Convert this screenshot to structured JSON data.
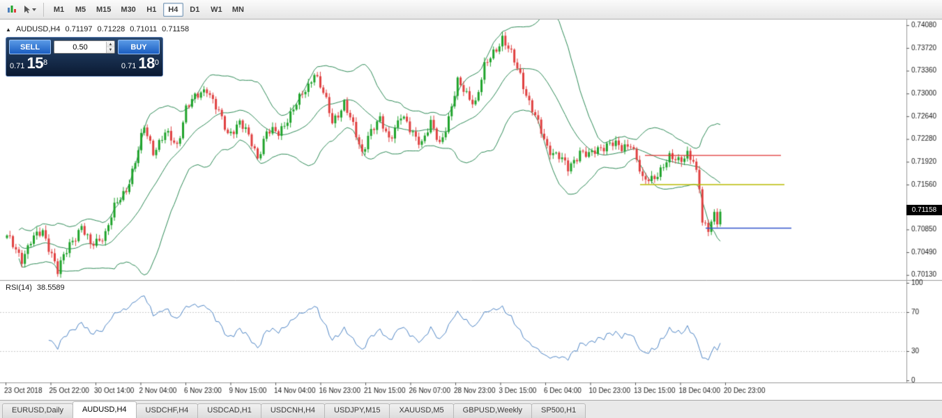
{
  "toolbar": {
    "icons": [
      {
        "name": "chart-bars-icon"
      },
      {
        "name": "cursor-dropdown-icon"
      }
    ],
    "timeframes": [
      {
        "label": "M1",
        "active": false
      },
      {
        "label": "M5",
        "active": false
      },
      {
        "label": "M15",
        "active": false
      },
      {
        "label": "M30",
        "active": false
      },
      {
        "label": "H1",
        "active": false
      },
      {
        "label": "H4",
        "active": true
      },
      {
        "label": "D1",
        "active": false
      },
      {
        "label": "W1",
        "active": false
      },
      {
        "label": "MN",
        "active": false
      }
    ]
  },
  "symbol_header": {
    "collapse_icon": "▲",
    "symbol": "AUDUSD,H4",
    "open": "0.71197",
    "high": "0.71228",
    "low": "0.71011",
    "close": "0.71158"
  },
  "one_click": {
    "sell_label": "SELL",
    "buy_label": "BUY",
    "lot": "0.50",
    "sell_price_small": "0.71",
    "sell_price_big": "15",
    "sell_price_sup": "8",
    "buy_price_small": "0.71",
    "buy_price_big": "18",
    "buy_price_sup": "0"
  },
  "rsi_panel": {
    "name": "RSI(14)",
    "value": "38.5589",
    "levels": [
      "100",
      "70",
      "30",
      "0"
    ],
    "overbought": 70,
    "oversold": 30,
    "line_color": "#4f86c6",
    "level_line_color": "#c9c9c9"
  },
  "tabs": [
    {
      "label": "EURUSD,Daily",
      "active": false
    },
    {
      "label": "AUDUSD,H4",
      "active": true
    },
    {
      "label": "USDCHF,H4",
      "active": false
    },
    {
      "label": "USDCAD,H1",
      "active": false
    },
    {
      "label": "USDCNH,H4",
      "active": false
    },
    {
      "label": "USDJPY,M15",
      "active": false
    },
    {
      "label": "XAUUSD,M5",
      "active": false
    },
    {
      "label": "GBPUSD,Weekly",
      "active": false
    },
    {
      "label": "SP500,H1",
      "active": false
    }
  ],
  "chart_data": {
    "type": "candlestick",
    "symbol": "AUDUSD",
    "timeframe": "H4",
    "title": "AUDUSD,H4",
    "current_price": "0.71158",
    "ohlc_header": {
      "open": 0.71197,
      "high": 0.71228,
      "low": 0.71011,
      "close": 0.71158
    },
    "price_min": 0.7005,
    "price_max": 0.7417,
    "y_ticks": [
      "0.74080",
      "0.73720",
      "0.73360",
      "0.73000",
      "0.72640",
      "0.72280",
      "0.71920",
      "0.71560",
      "0.70850",
      "0.70490",
      "0.70130"
    ],
    "x_labels": [
      "23 Oct 2018",
      "25 Oct 22:00",
      "30 Oct 14:00",
      "2 Nov 04:00",
      "6 Nov 23:00",
      "9 Nov 15:00",
      "14 Nov 04:00",
      "16 Nov 23:00",
      "21 Nov 15:00",
      "26 Nov 07:00",
      "28 Nov 23:00",
      "3 Dec 15:00",
      "6 Dec 04:00",
      "10 Dec 23:00",
      "13 Dec 15:00",
      "18 Dec 04:00",
      "20 Dec 23:00"
    ],
    "candle_count": 240,
    "up_color": "#1fa32b",
    "down_color": "#e04040",
    "band_color": "#2e8b57",
    "band_period": 20,
    "band_deviation": 2,
    "rsi_period": 14,
    "rsi_current": 38.5589,
    "close_anchors": [
      [
        0,
        0.7072
      ],
      [
        5,
        0.704
      ],
      [
        8,
        0.7066
      ],
      [
        12,
        0.7082
      ],
      [
        15,
        0.7048
      ],
      [
        17,
        0.7018
      ],
      [
        21,
        0.7062
      ],
      [
        25,
        0.709
      ],
      [
        28,
        0.7058
      ],
      [
        33,
        0.708
      ],
      [
        36,
        0.7118
      ],
      [
        40,
        0.715
      ],
      [
        43,
        0.7192
      ],
      [
        46,
        0.7246
      ],
      [
        49,
        0.721
      ],
      [
        53,
        0.7236
      ],
      [
        57,
        0.7218
      ],
      [
        60,
        0.7278
      ],
      [
        64,
        0.7296
      ],
      [
        67,
        0.731
      ],
      [
        71,
        0.7268
      ],
      [
        74,
        0.7235
      ],
      [
        78,
        0.7256
      ],
      [
        81,
        0.723
      ],
      [
        84,
        0.72
      ],
      [
        87,
        0.724
      ],
      [
        91,
        0.7236
      ],
      [
        94,
        0.7262
      ],
      [
        98,
        0.729
      ],
      [
        101,
        0.7312
      ],
      [
        103,
        0.7336
      ],
      [
        106,
        0.73
      ],
      [
        109,
        0.7254
      ],
      [
        113,
        0.7286
      ],
      [
        116,
        0.7246
      ],
      [
        119,
        0.7206
      ],
      [
        121,
        0.7236
      ],
      [
        125,
        0.7256
      ],
      [
        128,
        0.723
      ],
      [
        132,
        0.7264
      ],
      [
        135,
        0.7242
      ],
      [
        139,
        0.7224
      ],
      [
        142,
        0.725
      ],
      [
        145,
        0.722
      ],
      [
        148,
        0.7262
      ],
      [
        151,
        0.7316
      ],
      [
        154,
        0.73
      ],
      [
        157,
        0.7286
      ],
      [
        160,
        0.734
      ],
      [
        163,
        0.7366
      ],
      [
        166,
        0.7388
      ],
      [
        169,
        0.736
      ],
      [
        172,
        0.733
      ],
      [
        175,
        0.7286
      ],
      [
        178,
        0.725
      ],
      [
        181,
        0.7216
      ],
      [
        185,
        0.72
      ],
      [
        188,
        0.718
      ],
      [
        192,
        0.721
      ],
      [
        195,
        0.72
      ],
      [
        199,
        0.7216
      ],
      [
        202,
        0.7222
      ],
      [
        206,
        0.7212
      ],
      [
        209,
        0.7224
      ],
      [
        211,
        0.7196
      ],
      [
        213,
        0.716
      ],
      [
        216,
        0.7166
      ],
      [
        219,
        0.718
      ],
      [
        222,
        0.7196
      ],
      [
        225,
        0.7196
      ],
      [
        228,
        0.7206
      ],
      [
        230,
        0.719
      ],
      [
        232,
        0.715
      ],
      [
        233,
        0.7096
      ],
      [
        235,
        0.709
      ],
      [
        237,
        0.7112
      ],
      [
        238,
        0.7094
      ],
      [
        239,
        0.7112
      ]
    ],
    "hlines": [
      {
        "name": "resistance-line",
        "price": 0.7202,
        "color": "#e03131",
        "x_from": 925,
        "x_to": 1120
      },
      {
        "name": "mid-support-line",
        "price": 0.7156,
        "color": "#b8bb00",
        "x_from": 918,
        "x_to": 1125
      },
      {
        "name": "lower-support-line",
        "price": 0.7087,
        "color": "#3355cc",
        "x_from": 1012,
        "x_to": 1135
      }
    ]
  }
}
